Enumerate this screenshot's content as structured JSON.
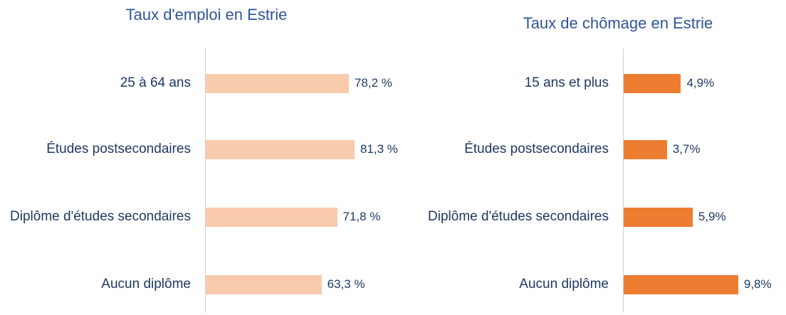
{
  "chart_data": [
    {
      "type": "bar",
      "orientation": "horizontal",
      "title": "Taux d'emploi en Estrie",
      "categories": [
        "25 à 64 ans",
        "Études postsecondaires",
        "Diplôme d'études secondaires",
        "Aucun diplôme"
      ],
      "values": [
        78.2,
        81.3,
        71.8,
        63.3
      ],
      "value_labels": [
        "78,2 %",
        "81,3 %",
        "71,8 %",
        "63,3 %"
      ],
      "color": "#f8cbad",
      "xlim": [
        0,
        100
      ]
    },
    {
      "type": "bar",
      "orientation": "horizontal",
      "title": "Taux de chômage en Estrie",
      "categories": [
        "15 ans et plus",
        "Études postsecondaires",
        "Diplôme d'études secondaires",
        "Aucun diplôme"
      ],
      "values": [
        4.9,
        3.7,
        5.9,
        9.8
      ],
      "value_labels": [
        "4,9%",
        "3,7%",
        "5,9%",
        "9,8%"
      ],
      "color": "#ed7d31",
      "xlim": [
        0,
        12
      ]
    }
  ]
}
